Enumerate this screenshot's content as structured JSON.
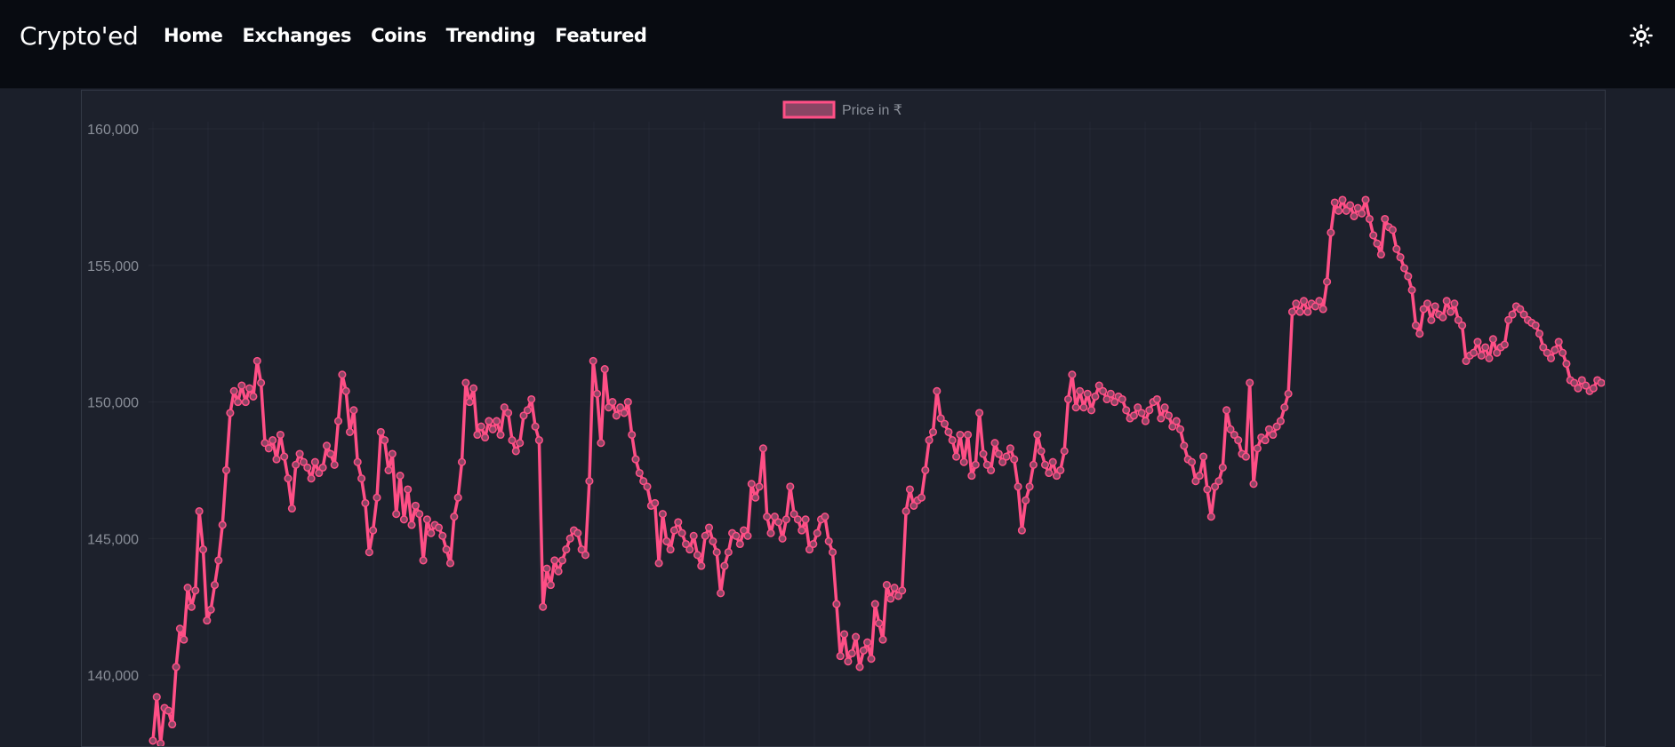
{
  "navbar": {
    "brand": "Crypto'ed",
    "links": [
      "Home",
      "Exchanges",
      "Coins",
      "Trending",
      "Featured"
    ],
    "theme_toggle_icon": "sun-icon"
  },
  "colors": {
    "navbar_bg": "#080b11",
    "page_bg": "#1b1f2a",
    "line": "#ff4f86",
    "legend_fill": "#8a4564",
    "tick_text": "#8a8f99"
  },
  "chart_data": {
    "type": "line",
    "series": [
      {
        "name": "Price in ₹",
        "values": [
          137600,
          139200,
          137500,
          138800,
          138700,
          138200,
          140300,
          141700,
          141300,
          143200,
          142500,
          143100,
          146000,
          144600,
          142000,
          142400,
          143300,
          144200,
          145500,
          147500,
          149600,
          150400,
          150000,
          150600,
          150000,
          150500,
          150200,
          151500,
          150700,
          148500,
          148300,
          148600,
          147900,
          148800,
          148000,
          147200,
          146100,
          147700,
          148100,
          147800,
          147600,
          147200,
          147800,
          147400,
          147600,
          148400,
          148100,
          147700,
          149300,
          151000,
          150400,
          148900,
          149700,
          147800,
          147200,
          146300,
          144500,
          145300,
          146500,
          148900,
          148600,
          147500,
          148100,
          145900,
          147300,
          145700,
          146800,
          145500,
          146200,
          145900,
          144200,
          145700,
          145200,
          145500,
          145400,
          145100,
          144600,
          144100,
          145800,
          146500,
          147800,
          150700,
          150000,
          150500,
          148800,
          149100,
          148700,
          149300,
          149000,
          149300,
          148800,
          149800,
          149600,
          148600,
          148200,
          148500,
          149500,
          149700,
          150100,
          149100,
          148600,
          142500,
          143900,
          143300,
          144200,
          143800,
          144200,
          144600,
          145000,
          145300,
          145200,
          144600,
          144400,
          147100,
          151500,
          150300,
          148500,
          151200,
          149800,
          150000,
          149500,
          149800,
          149600,
          150000,
          148800,
          147900,
          147400,
          147100,
          146900,
          146200,
          146300,
          144100,
          145900,
          144900,
          144600,
          145300,
          145600,
          145200,
          144800,
          144600,
          145100,
          144400,
          144000,
          145100,
          145400,
          144900,
          144500,
          143000,
          144000,
          144500,
          145200,
          145100,
          144800,
          145300,
          145100,
          147000,
          146500,
          146900,
          148300,
          145800,
          145200,
          145800,
          145600,
          145000,
          145700,
          146900,
          145900,
          145700,
          145300,
          145700,
          144600,
          144800,
          145200,
          145700,
          145800,
          144900,
          144500,
          142600,
          140700,
          141500,
          140500,
          140800,
          141400,
          140300,
          140900,
          141200,
          140600,
          142600,
          141900,
          141300,
          143300,
          142800,
          143200,
          142900,
          143100,
          146000,
          146800,
          146200,
          146400,
          146500,
          147500,
          148600,
          148900,
          150400,
          149400,
          149200,
          148900,
          148600,
          148000,
          148800,
          147800,
          148800,
          147300,
          147700,
          149600,
          148100,
          147700,
          147500,
          148500,
          148100,
          147800,
          148000,
          148300,
          147900,
          146900,
          145300,
          146400,
          146900,
          147700,
          148800,
          148200,
          147700,
          147400,
          147800,
          147300,
          147500,
          148200,
          150100,
          151000,
          149800,
          150400,
          149800,
          150300,
          149700,
          150200,
          150600,
          150400,
          150100,
          150300,
          150000,
          150200,
          150100,
          149700,
          149400,
          149500,
          149800,
          149600,
          149300,
          149700,
          150000,
          150100,
          149400,
          149800,
          149500,
          149100,
          149300,
          149000,
          148400,
          147900,
          147800,
          147100,
          147300,
          148000,
          146800,
          145800,
          146900,
          147100,
          147600,
          149700,
          149000,
          148800,
          148600,
          148100,
          148000,
          150700,
          147000,
          148300,
          148700,
          148600,
          149000,
          148800,
          149100,
          149300,
          149800,
          150300,
          153300,
          153600,
          153300,
          153700,
          153300,
          153600,
          153500,
          153700,
          153400,
          154400,
          156200,
          157300,
          157000,
          157400,
          157000,
          157200,
          156800,
          157100,
          156900,
          157400,
          156700,
          156100,
          155800,
          155400,
          156700,
          156400,
          156300,
          155600,
          155300,
          154900,
          154600,
          154100,
          152800,
          152500,
          153400,
          153600,
          153000,
          153500,
          153200,
          153100,
          153700,
          153300,
          153600,
          153000,
          152800,
          151500,
          151700,
          151800,
          152200,
          151700,
          152000,
          151600,
          152300,
          151800,
          152000,
          152100,
          153000,
          153200,
          153500,
          153400,
          153200,
          153000,
          152900,
          152800,
          152500,
          152000,
          151800,
          151600,
          151900,
          152200,
          151800,
          151400,
          150800,
          150700,
          150500,
          150800,
          150600,
          150400,
          150500,
          150800,
          150700
        ]
      }
    ],
    "legend": "top-center",
    "ylim": [
      137500,
      160000
    ],
    "yticks": [
      "160,000",
      "155,000",
      "150,000",
      "145,000",
      "140,000"
    ],
    "ytick_values": [
      160000,
      155000,
      150000,
      145000,
      140000
    ],
    "grid": true
  }
}
